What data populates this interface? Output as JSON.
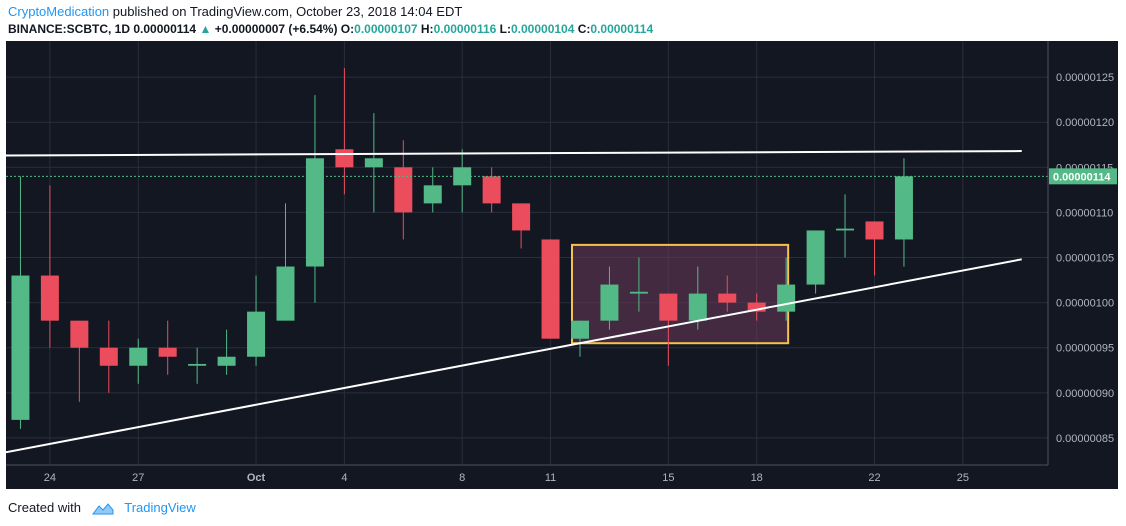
{
  "header": {
    "author": "CryptoMedication",
    "published_text": " published on TradingView.com, October 23, 2018 14:04 EDT",
    "symbol": "BINANCE:SCBTC, 1D",
    "last": "0.00000114",
    "change": "+0.00000007 (+6.54%)",
    "open_label": "O:",
    "open": "0.00000107",
    "high_label": "H:",
    "high": "0.00000116",
    "low_label": "L:",
    "low": "0.00000104",
    "close_label": "C:",
    "close": "0.00000114"
  },
  "footer": {
    "created_with": "Created with",
    "brand": "TradingView"
  },
  "colors": {
    "up": "#53b987",
    "down": "#eb4d5c",
    "background": "#131722",
    "trendline": "#ffffff",
    "box_border": "#f5c34b",
    "box_fill": "#6b3a5a",
    "price_label": "#53b987"
  },
  "chart_data": {
    "type": "candlestick",
    "x_ticks": [
      "24",
      "27",
      "Oct",
      "4",
      "8",
      "11",
      "15",
      "18",
      "22",
      "25"
    ],
    "y_ticks": [
      "0.00000125",
      "0.00000120",
      "0.00000115",
      "0.00000110",
      "0.00000105",
      "0.00000100",
      "0.00000095",
      "0.00000090",
      "0.00000085"
    ],
    "ylim": [
      8.2e-07,
      1.29e-06
    ],
    "current_price_label": "0.00000114",
    "current_price": 1.14e-06,
    "candles": [
      {
        "date": "Sep 23",
        "o": 8.7e-07,
        "h": 1.14e-06,
        "l": 8.6e-07,
        "c": 1.03e-06
      },
      {
        "date": "Sep 24",
        "o": 1.03e-06,
        "h": 1.13e-06,
        "l": 9.5e-07,
        "c": 9.8e-07
      },
      {
        "date": "Sep 25",
        "o": 9.8e-07,
        "h": 9.8e-07,
        "l": 8.9e-07,
        "c": 9.5e-07
      },
      {
        "date": "Sep 26",
        "o": 9.5e-07,
        "h": 9.8e-07,
        "l": 9e-07,
        "c": 9.3e-07
      },
      {
        "date": "Sep 27",
        "o": 9.3e-07,
        "h": 9.6e-07,
        "l": 9.1e-07,
        "c": 9.5e-07
      },
      {
        "date": "Sep 28",
        "o": 9.5e-07,
        "h": 9.8e-07,
        "l": 9.2e-07,
        "c": 9.4e-07
      },
      {
        "date": "Sep 29",
        "o": 9.3e-07,
        "h": 9.5e-07,
        "l": 9.1e-07,
        "c": 9.32e-07
      },
      {
        "date": "Sep 30",
        "o": 9.3e-07,
        "h": 9.7e-07,
        "l": 9.2e-07,
        "c": 9.4e-07
      },
      {
        "date": "Oct 1",
        "o": 9.4e-07,
        "h": 1.03e-06,
        "l": 9.3e-07,
        "c": 9.9e-07
      },
      {
        "date": "Oct 2",
        "o": 9.8e-07,
        "h": 1.11e-06,
        "l": 9.8e-07,
        "c": 1.04e-06
      },
      {
        "date": "Oct 3",
        "o": 1.04e-06,
        "h": 1.23e-06,
        "l": 1e-06,
        "c": 1.16e-06
      },
      {
        "date": "Oct 4",
        "o": 1.17e-06,
        "h": 1.26e-06,
        "l": 1.12e-06,
        "c": 1.15e-06
      },
      {
        "date": "Oct 5",
        "o": 1.15e-06,
        "h": 1.21e-06,
        "l": 1.1e-06,
        "c": 1.16e-06
      },
      {
        "date": "Oct 6",
        "o": 1.15e-06,
        "h": 1.18e-06,
        "l": 1.07e-06,
        "c": 1.1e-06
      },
      {
        "date": "Oct 7",
        "o": 1.11e-06,
        "h": 1.15e-06,
        "l": 1.1e-06,
        "c": 1.13e-06
      },
      {
        "date": "Oct 8",
        "o": 1.13e-06,
        "h": 1.17e-06,
        "l": 1.1e-06,
        "c": 1.15e-06
      },
      {
        "date": "Oct 9",
        "o": 1.14e-06,
        "h": 1.15e-06,
        "l": 1.1e-06,
        "c": 1.11e-06
      },
      {
        "date": "Oct 10",
        "o": 1.11e-06,
        "h": 1.11e-06,
        "l": 1.06e-06,
        "c": 1.08e-06
      },
      {
        "date": "Oct 11",
        "o": 1.07e-06,
        "h": 1.07e-06,
        "l": 9.6e-07,
        "c": 9.6e-07
      },
      {
        "date": "Oct 12",
        "o": 9.6e-07,
        "h": 9.8e-07,
        "l": 9.4e-07,
        "c": 9.8e-07
      },
      {
        "date": "Oct 13",
        "o": 9.8e-07,
        "h": 1.04e-06,
        "l": 9.7e-07,
        "c": 1.02e-06
      },
      {
        "date": "Oct 14",
        "o": 1.01e-06,
        "h": 1.05e-06,
        "l": 9.9e-07,
        "c": 1.012e-06
      },
      {
        "date": "Oct 15",
        "o": 1.01e-06,
        "h": 1.01e-06,
        "l": 9.3e-07,
        "c": 9.8e-07
      },
      {
        "date": "Oct 16",
        "o": 9.8e-07,
        "h": 1.04e-06,
        "l": 9.7e-07,
        "c": 1.01e-06
      },
      {
        "date": "Oct 17",
        "o": 1.01e-06,
        "h": 1.03e-06,
        "l": 9.9e-07,
        "c": 1e-06
      },
      {
        "date": "Oct 18",
        "o": 1e-06,
        "h": 1.01e-06,
        "l": 9.8e-07,
        "c": 9.9e-07
      },
      {
        "date": "Oct 19",
        "o": 9.9e-07,
        "h": 1.05e-06,
        "l": 9.8e-07,
        "c": 1.02e-06
      },
      {
        "date": "Oct 20",
        "o": 1.02e-06,
        "h": 1.08e-06,
        "l": 1.01e-06,
        "c": 1.08e-06
      },
      {
        "date": "Oct 21",
        "o": 1.08e-06,
        "h": 1.12e-06,
        "l": 1.05e-06,
        "c": 1.082e-06
      },
      {
        "date": "Oct 22",
        "o": 1.09e-06,
        "h": 1.09e-06,
        "l": 1.03e-06,
        "c": 1.07e-06
      },
      {
        "date": "Oct 23",
        "o": 1.07e-06,
        "h": 1.16e-06,
        "l": 1.04e-06,
        "c": 1.14e-06
      }
    ],
    "trendlines": [
      {
        "from": {
          "date": "Sep 22",
          "price": 1.163e-06
        },
        "to": {
          "date": "Oct 27",
          "price": 1.168e-06
        }
      },
      {
        "from": {
          "date": "Sep 22",
          "price": 8.31e-07
        },
        "to": {
          "date": "Oct 27",
          "price": 1.048e-06
        }
      }
    ],
    "rectangle": {
      "from_date": "Oct 12",
      "to_date": "Oct 19",
      "top": 1.064e-06,
      "bottom": 9.55e-07
    }
  }
}
